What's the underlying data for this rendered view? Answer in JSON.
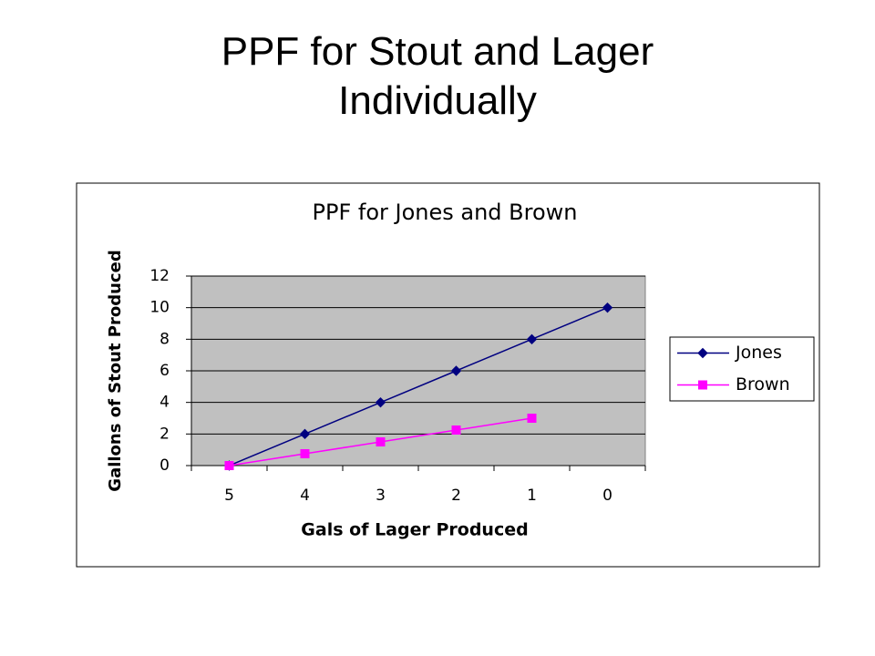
{
  "slide_title": "PPF for Stout and Lager Individually",
  "chart_data": {
    "type": "line",
    "title": "PPF for Jones and Brown",
    "categories": [
      "5",
      "4",
      "3",
      "2",
      "1",
      "0"
    ],
    "series": [
      {
        "name": "Jones",
        "color": "#000080",
        "marker": "diamond",
        "values": [
          0,
          2,
          4,
          6,
          8,
          10
        ]
      },
      {
        "name": "Brown",
        "color": "#ff00ff",
        "marker": "square",
        "values": [
          0,
          0.75,
          1.5,
          2.25,
          3,
          null
        ]
      }
    ],
    "x_label": "Gals of Lager Produced",
    "y_label": "Gallons of Stout Produced",
    "ylim": [
      0,
      12
    ],
    "yticks": [
      0,
      2,
      4,
      6,
      8,
      10,
      12
    ],
    "grid": true,
    "plot_background": "#c0c0c0",
    "legend": "right"
  }
}
